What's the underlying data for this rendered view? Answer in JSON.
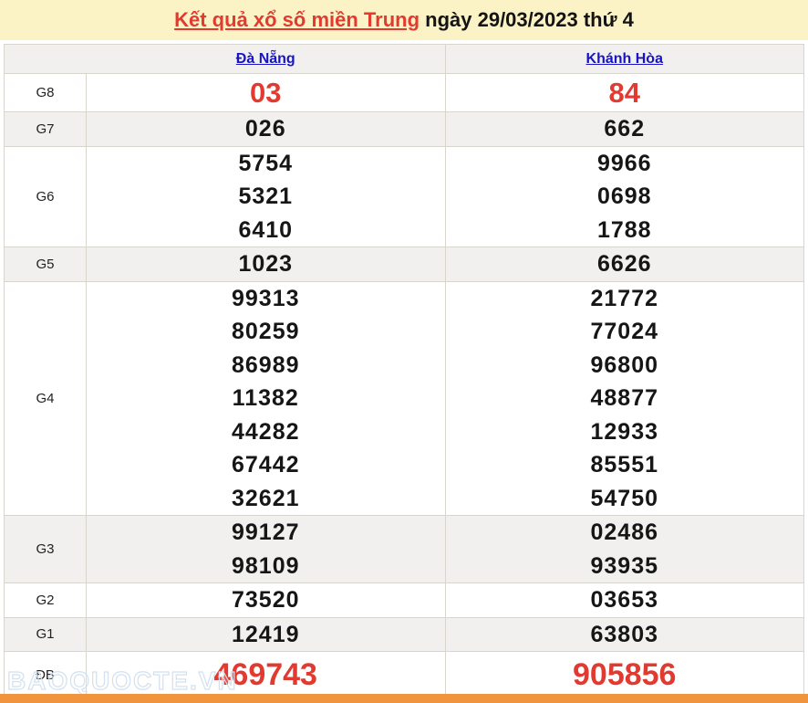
{
  "title": {
    "link_text": "Kết quả xổ số miền Trung",
    "suffix_text": " ngày 29/03/2023 thứ 4"
  },
  "table": {
    "columns": [
      "Đà Nẵng",
      "Khánh Hòa"
    ],
    "rows": [
      {
        "label": "G8",
        "da_nang": [
          "03"
        ],
        "khanh_hoa": [
          "84"
        ]
      },
      {
        "label": "G7",
        "da_nang": [
          "026"
        ],
        "khanh_hoa": [
          "662"
        ]
      },
      {
        "label": "G6",
        "da_nang": [
          "5754",
          "5321",
          "6410"
        ],
        "khanh_hoa": [
          "9966",
          "0698",
          "1788"
        ]
      },
      {
        "label": "G5",
        "da_nang": [
          "1023"
        ],
        "khanh_hoa": [
          "6626"
        ]
      },
      {
        "label": "G4",
        "da_nang": [
          "99313",
          "80259",
          "86989",
          "11382",
          "44282",
          "67442",
          "32621"
        ],
        "khanh_hoa": [
          "21772",
          "77024",
          "96800",
          "48877",
          "12933",
          "85551",
          "54750"
        ]
      },
      {
        "label": "G3",
        "da_nang": [
          "99127",
          "98109"
        ],
        "khanh_hoa": [
          "02486",
          "93935"
        ]
      },
      {
        "label": "G2",
        "da_nang": [
          "73520"
        ],
        "khanh_hoa": [
          "03653"
        ]
      },
      {
        "label": "G1",
        "da_nang": [
          "12419"
        ],
        "khanh_hoa": [
          "63803"
        ]
      },
      {
        "label": "ĐB",
        "da_nang": [
          "469743"
        ],
        "khanh_hoa": [
          "905856"
        ]
      }
    ]
  },
  "watermark": "BAOQUOCTE.VN",
  "colors": {
    "title_bg": "#fbf2c5",
    "highlight_red": "#e23a30",
    "link_blue": "#1814c6",
    "alt_row_bg": "#f1f0ee",
    "border": "#d8d5cf",
    "footer_orange": "#f0953e"
  }
}
